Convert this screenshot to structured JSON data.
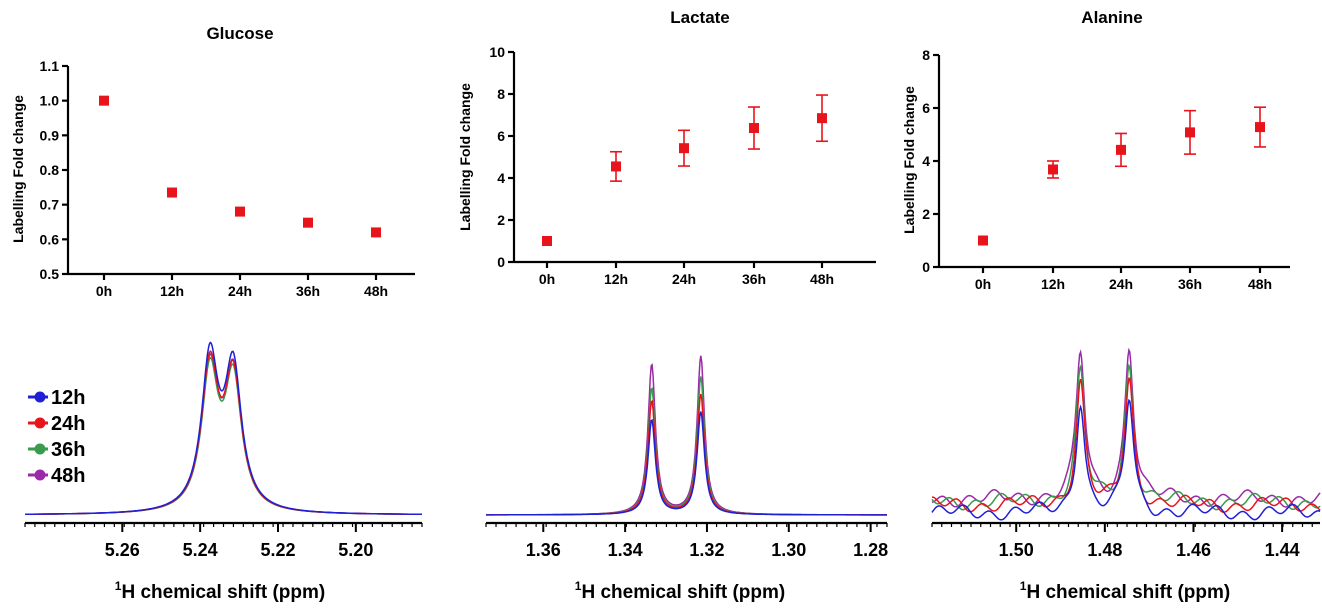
{
  "colors": {
    "marker": "#e8141b",
    "s12": "#1f1fd6",
    "s24": "#e8141b",
    "s36": "#3a9a4e",
    "s48": "#9b2aa8"
  },
  "legend": [
    "12h",
    "24h",
    "36h",
    "48h"
  ],
  "chart_data": [
    {
      "type": "scatter",
      "title": "Glucose",
      "ylabel": "Labelling Fold change",
      "categories": [
        "0h",
        "12h",
        "24h",
        "36h",
        "48h"
      ],
      "values": [
        1.0,
        0.735,
        0.68,
        0.648,
        0.62
      ],
      "errors": [
        0,
        0,
        0,
        0,
        0
      ],
      "ylim": [
        0.5,
        1.1
      ],
      "yticks": [
        "0.5",
        "0.6",
        "0.7",
        "0.8",
        "0.9",
        "1.0",
        "1.1"
      ]
    },
    {
      "type": "scatter",
      "title": "Lactate",
      "ylabel": "Labelling Fold change",
      "categories": [
        "0h",
        "12h",
        "24h",
        "36h",
        "48h"
      ],
      "values": [
        1.0,
        4.55,
        5.42,
        6.38,
        6.85
      ],
      "errors": [
        0,
        0.7,
        0.85,
        1.0,
        1.1
      ],
      "ylim": [
        0,
        10
      ],
      "yticks": [
        "0",
        "2",
        "4",
        "6",
        "8",
        "10"
      ]
    },
    {
      "type": "scatter",
      "title": "Alanine",
      "ylabel": "Labelling Fold change",
      "categories": [
        "0h",
        "12h",
        "24h",
        "36h",
        "48h"
      ],
      "values": [
        1.0,
        3.68,
        4.42,
        5.08,
        5.28
      ],
      "errors": [
        0,
        0.32,
        0.62,
        0.82,
        0.75
      ],
      "ylim": [
        0,
        8
      ],
      "yticks": [
        "0",
        "2",
        "4",
        "6",
        "8"
      ]
    },
    {
      "type": "line",
      "xlabel_sup": "1",
      "xlabel": "H chemical shift (ppm)",
      "xlim": [
        5.285,
        5.183
      ],
      "xticks": [
        "5.26",
        "5.24",
        "5.22",
        "5.20"
      ],
      "peaks": [
        5.2375,
        5.2315
      ],
      "peak_width": 0.0026,
      "series": [
        {
          "name": "12h",
          "heights": [
            1.0,
            0.93
          ],
          "baseline": 0
        },
        {
          "name": "24h",
          "heights": [
            0.95,
            0.88
          ],
          "baseline": 0
        },
        {
          "name": "36h",
          "heights": [
            0.91,
            0.86
          ],
          "baseline": 0
        },
        {
          "name": "48h",
          "heights": [
            0.93,
            0.89
          ],
          "baseline": 0
        }
      ]
    },
    {
      "type": "line",
      "xlabel_sup": "1",
      "xlabel": "H chemical shift (ppm)",
      "xlim": [
        1.374,
        1.276
      ],
      "xticks": [
        "1.36",
        "1.34",
        "1.32",
        "1.30",
        "1.28"
      ],
      "peaks": [
        1.3335,
        1.3215
      ],
      "peak_width": 0.0011,
      "series": [
        {
          "name": "12h",
          "heights": [
            0.6,
            0.65
          ],
          "baseline": 0
        },
        {
          "name": "24h",
          "heights": [
            0.72,
            0.76
          ],
          "baseline": 0
        },
        {
          "name": "36h",
          "heights": [
            0.8,
            0.87
          ],
          "baseline": 0
        },
        {
          "name": "48h",
          "heights": [
            0.95,
            1.0
          ],
          "baseline": 0
        }
      ]
    },
    {
      "type": "line",
      "xlabel_sup": "1",
      "xlabel": "H chemical shift (ppm)",
      "xlim": [
        1.519,
        1.431
      ],
      "xticks": [
        "1.50",
        "1.48",
        "1.46",
        "1.44"
      ],
      "peaks": [
        1.4855,
        1.4745
      ],
      "peak_width": 0.0012,
      "series": [
        {
          "name": "12h",
          "heights": [
            0.73,
            0.74
          ],
          "baseline": -0.05
        },
        {
          "name": "24h",
          "heights": [
            0.8,
            0.82
          ],
          "baseline": 0.0
        },
        {
          "name": "36h",
          "heights": [
            0.84,
            0.88
          ],
          "baseline": 0.02
        },
        {
          "name": "48h",
          "heights": [
            0.95,
            1.0
          ],
          "baseline": 0.04
        }
      ]
    }
  ]
}
